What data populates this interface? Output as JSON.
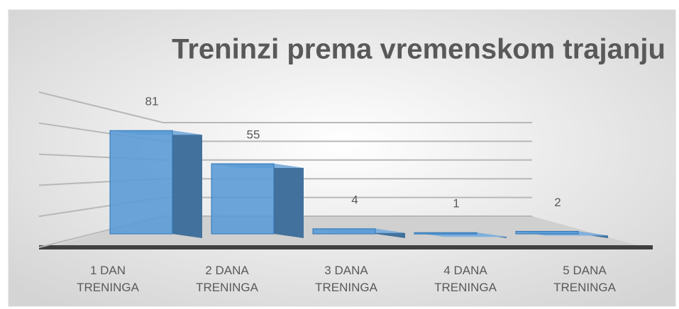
{
  "chart_data": {
    "type": "bar3d",
    "title": "Treninzi prema vremenskom trajanju",
    "categories": [
      "1 DAN TRENINGA",
      "2 DANA TRENINGA",
      "3 DANA TRENINGA",
      "4 DANA TRENINGA",
      "5 DANA TRENINGA"
    ],
    "values": [
      81,
      55,
      4,
      1,
      2
    ],
    "color": "#5b9bd5",
    "ylim": [
      0,
      100
    ],
    "yticks": [
      0,
      20,
      40,
      60,
      80,
      100
    ],
    "grid": true
  }
}
